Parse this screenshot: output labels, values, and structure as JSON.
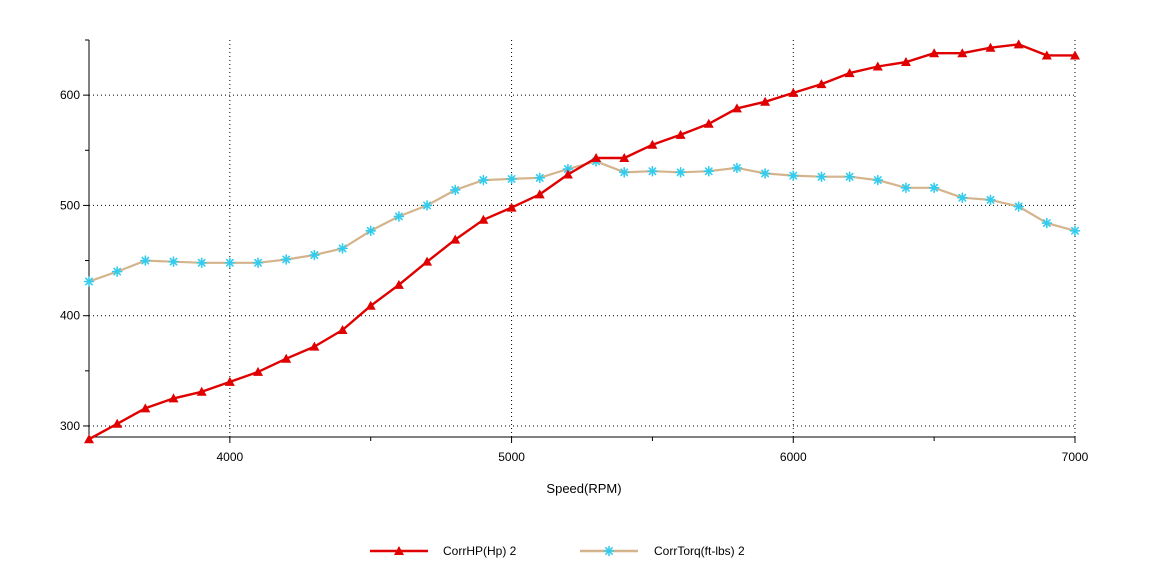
{
  "chart_data": {
    "type": "line",
    "xlabel": "Speed(RPM)",
    "xlim": [
      3500,
      7000
    ],
    "ylim": [
      290,
      650
    ],
    "x_ticks": [
      4000,
      5000,
      6000,
      7000
    ],
    "y_ticks": [
      300,
      400,
      500,
      600
    ],
    "grid": true,
    "legend_position": "bottom-center",
    "x": [
      3500,
      3600,
      3700,
      3800,
      3900,
      4000,
      4100,
      4200,
      4300,
      4400,
      4500,
      4600,
      4700,
      4800,
      4900,
      5000,
      5100,
      5200,
      5300,
      5400,
      5500,
      5600,
      5700,
      5800,
      5900,
      6000,
      6100,
      6200,
      6300,
      6400,
      6500,
      6600,
      6700,
      6800,
      6900,
      7000
    ],
    "series": [
      {
        "name": "CorrHP(Hp) 2",
        "color": "#e00000",
        "marker": "triangle",
        "values": [
          288,
          302,
          316,
          325,
          331,
          340,
          349,
          361,
          372,
          387,
          409,
          428,
          449,
          469,
          487,
          498,
          510,
          528,
          543,
          543,
          555,
          564,
          574,
          588,
          594,
          602,
          610,
          620,
          626,
          630,
          638,
          638,
          643,
          646,
          636,
          636
        ]
      },
      {
        "name": "CorrTorq(ft-lbs) 2",
        "color": "#d4b48c",
        "marker_color": "#33ccee",
        "marker": "asterisk",
        "values": [
          431,
          440,
          450,
          449,
          448,
          448,
          448,
          451,
          455,
          461,
          477,
          490,
          500,
          514,
          523,
          524,
          525,
          533,
          540,
          530,
          531,
          530,
          531,
          534,
          529,
          527,
          526,
          526,
          523,
          516,
          516,
          507,
          505,
          499,
          484,
          477
        ]
      }
    ]
  }
}
